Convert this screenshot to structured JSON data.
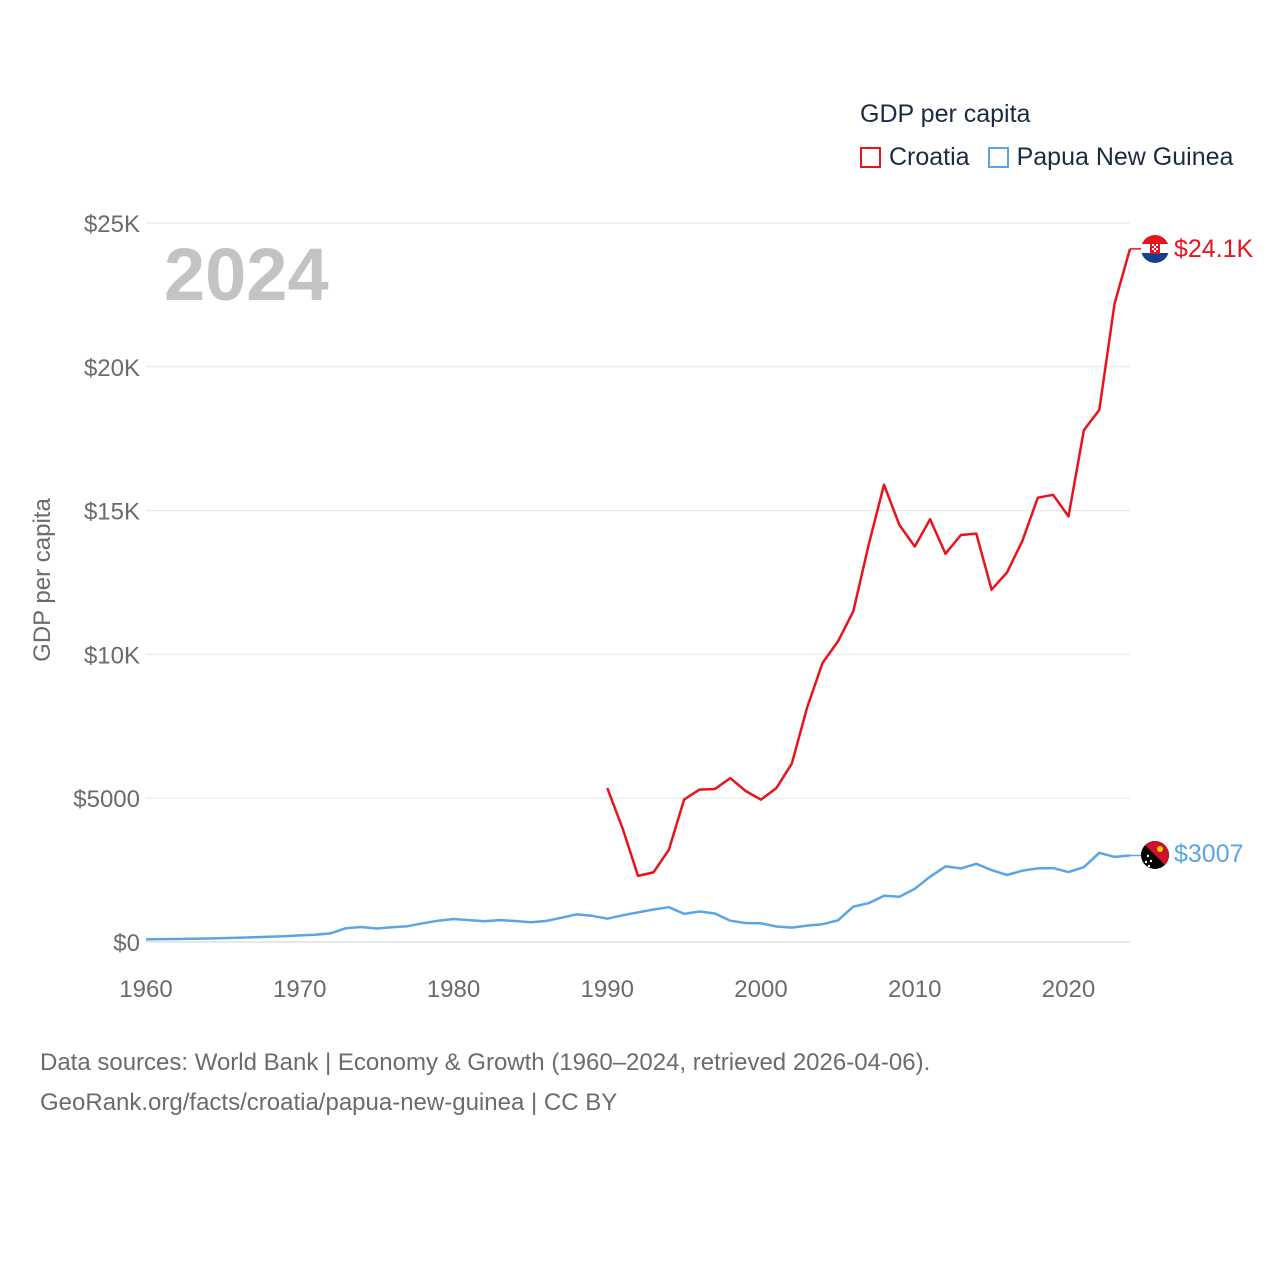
{
  "year": "2024",
  "legend": {
    "title": "GDP per capita",
    "items": [
      {
        "label": "Croatia",
        "color": "#e8131b"
      },
      {
        "label": "Papua New Guinea",
        "color": "#5aa5e6"
      }
    ]
  },
  "end_labels": {
    "croatia": "$24.1K",
    "png": "$3007"
  },
  "sources": {
    "line1": "Data sources: World Bank | Economy & Growth (1960–2024, retrieved 2026-04-06).",
    "line2": "GeoRank.org/facts/croatia/papua-new-guinea | CC BY"
  },
  "chart_data": {
    "type": "line",
    "title": "",
    "xlabel": "",
    "ylabel": "GDP per capita",
    "xlim": [
      1960,
      2024
    ],
    "ylim": [
      0,
      25000
    ],
    "x_ticks": [
      1960,
      1970,
      1980,
      1990,
      2000,
      2010,
      2020
    ],
    "y_ticks": [
      {
        "value": 0,
        "label": "$0"
      },
      {
        "value": 5000,
        "label": "$5000"
      },
      {
        "value": 10000,
        "label": "$10K"
      },
      {
        "value": 15000,
        "label": "$15K"
      },
      {
        "value": 20000,
        "label": "$20K"
      },
      {
        "value": 25000,
        "label": "$25K"
      }
    ],
    "series": [
      {
        "name": "Croatia",
        "color": "#e8131b",
        "start_year": 1990,
        "values": [
          5350,
          3950,
          2300,
          2420,
          3200,
          4950,
          5300,
          5320,
          5700,
          5250,
          4950,
          5350,
          6200,
          8150,
          9700,
          10450,
          11500,
          13800,
          15900,
          14500,
          13750,
          14700,
          13500,
          14150,
          14200,
          12250,
          12850,
          13950,
          15450,
          15550,
          14800,
          17800,
          18500,
          22200,
          24100
        ]
      },
      {
        "name": "Papua New Guinea",
        "color": "#5aa5e6",
        "start_year": 1960,
        "values": [
          90,
          100,
          105,
          110,
          120,
          135,
          150,
          165,
          180,
          200,
          230,
          255,
          300,
          480,
          520,
          470,
          510,
          550,
          650,
          740,
          800,
          760,
          720,
          760,
          730,
          690,
          730,
          840,
          960,
          910,
          810,
          930,
          1030,
          1130,
          1210,
          980,
          1060,
          990,
          740,
          660,
          650,
          540,
          500,
          570,
          620,
          750,
          1230,
          1350,
          1610,
          1570,
          1850,
          2270,
          2630,
          2560,
          2720,
          2500,
          2330,
          2480,
          2560,
          2570,
          2430,
          2600,
          3100,
          2960,
          3007
        ]
      }
    ]
  }
}
